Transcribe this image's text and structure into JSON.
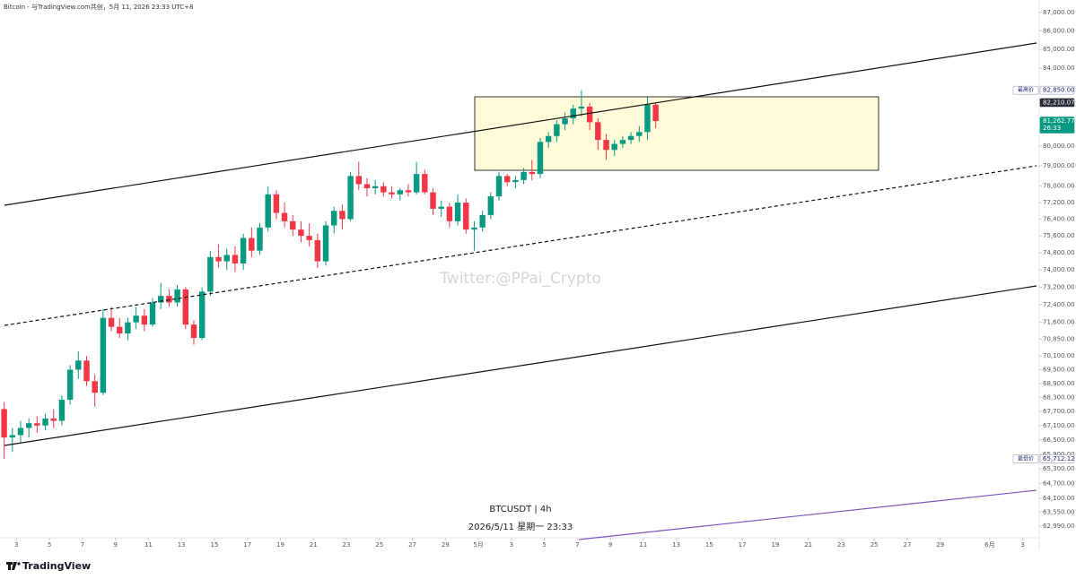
{
  "chart_data": {
    "type": "candlestick",
    "header": "Bitcoin - 与TradingView.com共创，5月 11, 2026 23:33 UTC+8",
    "title": "BTCUSDT | 4h",
    "subtitle": "2026/5/11 星期一 23:33",
    "watermark": "Twitter:@PPai_Crypto",
    "brand": "TradingView",
    "log_scale": true,
    "up_color": "#089981",
    "down_color": "#f23645",
    "x": [
      "2026-04-02 00:00",
      "2026-04-02 12:00",
      "2026-04-03 00:00",
      "2026-04-03 12:00",
      "2026-04-04 00:00",
      "2026-04-04 12:00",
      "2026-04-05 00:00",
      "2026-04-05 12:00",
      "2026-04-06 00:00",
      "2026-04-06 12:00",
      "2026-04-07 00:00",
      "2026-04-07 12:00",
      "2026-04-08 00:00",
      "2026-04-08 12:00",
      "2026-04-09 00:00",
      "2026-04-09 12:00",
      "2026-04-10 00:00",
      "2026-04-10 12:00",
      "2026-04-11 00:00",
      "2026-04-11 12:00",
      "2026-04-12 00:00",
      "2026-04-12 12:00",
      "2026-04-13 00:00",
      "2026-04-13 12:00",
      "2026-04-14 00:00",
      "2026-04-14 12:00",
      "2026-04-15 00:00",
      "2026-04-15 12:00",
      "2026-04-16 00:00",
      "2026-04-16 12:00",
      "2026-04-17 00:00",
      "2026-04-17 12:00",
      "2026-04-18 00:00",
      "2026-04-18 12:00",
      "2026-04-19 00:00",
      "2026-04-19 12:00",
      "2026-04-20 00:00",
      "2026-04-20 12:00",
      "2026-04-21 00:00",
      "2026-04-21 12:00",
      "2026-04-22 00:00",
      "2026-04-22 12:00",
      "2026-04-23 00:00",
      "2026-04-23 12:00",
      "2026-04-24 00:00",
      "2026-04-24 12:00",
      "2026-04-25 00:00",
      "2026-04-25 12:00",
      "2026-04-26 00:00",
      "2026-04-26 12:00",
      "2026-04-27 00:00",
      "2026-04-27 12:00",
      "2026-04-28 00:00",
      "2026-04-28 12:00",
      "2026-04-29 00:00",
      "2026-04-29 12:00",
      "2026-04-30 00:00",
      "2026-04-30 12:00",
      "2026-05-01 00:00",
      "2026-05-01 12:00",
      "2026-05-02 00:00",
      "2026-05-02 12:00",
      "2026-05-03 00:00",
      "2026-05-03 12:00",
      "2026-05-04 00:00",
      "2026-05-04 12:00",
      "2026-05-05 00:00",
      "2026-05-05 12:00",
      "2026-05-06 00:00",
      "2026-05-06 12:00",
      "2026-05-07 00:00",
      "2026-05-07 12:00",
      "2026-05-08 00:00",
      "2026-05-08 12:00",
      "2026-05-09 00:00",
      "2026-05-09 12:00",
      "2026-05-10 00:00",
      "2026-05-10 12:00",
      "2026-05-11 00:00",
      "2026-05-11 12:00"
    ],
    "open": [
      67800,
      66600,
      66700,
      67000,
      67200,
      67100,
      67400,
      67300,
      68200,
      69500,
      69900,
      69000,
      68500,
      71800,
      71400,
      71100,
      71600,
      71900,
      71500,
      72500,
      72800,
      72500,
      73100,
      71500,
      70900,
      73000,
      74600,
      74400,
      74700,
      74300,
      75500,
      74900,
      76000,
      77600,
      76700,
      76300,
      75900,
      75600,
      75400,
      74400,
      76100,
      76800,
      76400,
      78500,
      78100,
      77900,
      78000,
      77700,
      77600,
      77800,
      77700,
      78600,
      77700,
      76900,
      77000,
      76300,
      77200,
      75900,
      76000,
      76600,
      77500,
      78500,
      78200,
      78300,
      78700,
      78600,
      80200,
      80500,
      81100,
      81400,
      81900,
      82000,
      81200,
      80300,
      79800,
      80100,
      80300,
      80500,
      80700,
      82100
    ],
    "high": [
      68100,
      67000,
      67300,
      67400,
      67500,
      67600,
      67800,
      68400,
      69700,
      70300,
      70100,
      69300,
      72200,
      72300,
      71800,
      71800,
      72300,
      72200,
      72700,
      73400,
      73100,
      73300,
      73200,
      71700,
      73200,
      74900,
      75200,
      75000,
      75100,
      75700,
      76000,
      76200,
      78000,
      77800,
      77200,
      76600,
      76300,
      76200,
      75700,
      76300,
      77000,
      77100,
      78700,
      79200,
      78400,
      78300,
      78200,
      78000,
      77900,
      78100,
      79200,
      78800,
      77900,
      77300,
      77200,
      77600,
      77400,
      76300,
      76800,
      77700,
      78700,
      78600,
      78500,
      78900,
      79300,
      80400,
      80700,
      81300,
      81700,
      82100,
      82850,
      82200,
      81400,
      80600,
      80300,
      80500,
      80700,
      81000,
      82500,
      82210.07
    ],
    "low": [
      65712.12,
      66000,
      66400,
      66600,
      66800,
      66900,
      67000,
      67100,
      68000,
      69100,
      68800,
      67900,
      68400,
      71200,
      70900,
      70800,
      71300,
      71200,
      71400,
      72200,
      72300,
      72300,
      71300,
      70600,
      70800,
      72800,
      74100,
      74000,
      73900,
      74000,
      74600,
      74700,
      75800,
      76400,
      76000,
      75600,
      75300,
      75100,
      74100,
      74200,
      75700,
      75900,
      76300,
      77800,
      77500,
      77600,
      77500,
      77400,
      77300,
      77500,
      77600,
      77600,
      76600,
      76500,
      76000,
      76100,
      75700,
      74900,
      75800,
      76400,
      77300,
      78000,
      77900,
      78100,
      78300,
      78400,
      79900,
      80200,
      80800,
      81100,
      81500,
      80800,
      79800,
      79300,
      79500,
      79900,
      80100,
      80200,
      80300,
      80900
    ],
    "close": [
      66600,
      66700,
      67000,
      67200,
      67100,
      67400,
      67300,
      68200,
      69500,
      69900,
      69000,
      68500,
      71800,
      71400,
      71100,
      71600,
      71900,
      71500,
      72500,
      72800,
      72500,
      73100,
      71500,
      70900,
      73000,
      74600,
      74400,
      74700,
      74300,
      75500,
      74900,
      76000,
      77600,
      76700,
      76300,
      75900,
      75600,
      75400,
      74400,
      76100,
      76800,
      76400,
      78500,
      78100,
      77900,
      78000,
      77700,
      77600,
      77800,
      77700,
      78600,
      77700,
      76900,
      77000,
      76300,
      77200,
      75900,
      76000,
      76600,
      77500,
      78500,
      78200,
      78300,
      78700,
      78600,
      80200,
      80500,
      81100,
      81400,
      81900,
      82000,
      81200,
      80300,
      79800,
      80100,
      80300,
      80500,
      80700,
      82100,
      81262.77
    ],
    "xlim": [
      "2026-04-02 00:00",
      "2026-06-04 00:00"
    ],
    "xticks": [
      {
        "value": "2026-04-03",
        "label": "3"
      },
      {
        "value": "2026-04-05",
        "label": "5"
      },
      {
        "value": "2026-04-07",
        "label": "7"
      },
      {
        "value": "2026-04-09",
        "label": "9"
      },
      {
        "value": "2026-04-11",
        "label": "11"
      },
      {
        "value": "2026-04-13",
        "label": "13"
      },
      {
        "value": "2026-04-15",
        "label": "15"
      },
      {
        "value": "2026-04-17",
        "label": "17"
      },
      {
        "value": "2026-04-19",
        "label": "19"
      },
      {
        "value": "2026-04-21",
        "label": "21"
      },
      {
        "value": "2026-04-23",
        "label": "23"
      },
      {
        "value": "2026-04-25",
        "label": "25"
      },
      {
        "value": "2026-04-27",
        "label": "27"
      },
      {
        "value": "2026-04-29",
        "label": "29"
      },
      {
        "value": "2026-05-01",
        "label": "5月"
      },
      {
        "value": "2026-05-03",
        "label": "3"
      },
      {
        "value": "2026-05-05",
        "label": "5"
      },
      {
        "value": "2026-05-07",
        "label": "7"
      },
      {
        "value": "2026-05-09",
        "label": "9"
      },
      {
        "value": "2026-05-11",
        "label": "11"
      },
      {
        "value": "2026-05-13",
        "label": "13"
      },
      {
        "value": "2026-05-15",
        "label": "15"
      },
      {
        "value": "2026-05-17",
        "label": "17"
      },
      {
        "value": "2026-05-19",
        "label": "19"
      },
      {
        "value": "2026-05-21",
        "label": "21"
      },
      {
        "value": "2026-05-23",
        "label": "23"
      },
      {
        "value": "2026-05-25",
        "label": "25"
      },
      {
        "value": "2026-05-27",
        "label": "27"
      },
      {
        "value": "2026-05-29",
        "label": "29"
      },
      {
        "value": "2026-06-01",
        "label": "6月"
      },
      {
        "value": "2026-06-03",
        "label": "3"
      }
    ],
    "ylim": [
      62530,
      87440
    ],
    "yticks": [
      {
        "value": 87000,
        "label": "87,000.00"
      },
      {
        "value": 86000,
        "label": "86,000.00"
      },
      {
        "value": 85000,
        "label": "85,000.00"
      },
      {
        "value": 84000,
        "label": "84,000.00"
      },
      {
        "value": 80000,
        "label": "80,000.00"
      },
      {
        "value": 79000,
        "label": "79,000.00"
      },
      {
        "value": 78000,
        "label": "78,000.00"
      },
      {
        "value": 77200,
        "label": "77,200.00"
      },
      {
        "value": 76400,
        "label": "76,400.00"
      },
      {
        "value": 75600,
        "label": "75,600.00"
      },
      {
        "value": 74800,
        "label": "74,800.00"
      },
      {
        "value": 74000,
        "label": "74,000.00"
      },
      {
        "value": 73200,
        "label": "73,200.00"
      },
      {
        "value": 72400,
        "label": "72,400.00"
      },
      {
        "value": 71600,
        "label": "71,600.00"
      },
      {
        "value": 70850,
        "label": "70,850.00"
      },
      {
        "value": 70100,
        "label": "70,100.00"
      },
      {
        "value": 69500,
        "label": "69,500.00"
      },
      {
        "value": 68900,
        "label": "68,900.00"
      },
      {
        "value": 68300,
        "label": "68,300.00"
      },
      {
        "value": 67700,
        "label": "67,700.00"
      },
      {
        "value": 67100,
        "label": "67,100.00"
      },
      {
        "value": 66500,
        "label": "66,500.00"
      },
      {
        "value": 65900,
        "label": "65,900.00"
      },
      {
        "value": 65300,
        "label": "65,300.00"
      },
      {
        "value": 64700,
        "label": "64,700.00"
      },
      {
        "value": 64100,
        "label": "64,100.00"
      },
      {
        "value": 63550,
        "label": "63,550.00"
      },
      {
        "value": 62990,
        "label": "62,990.00"
      }
    ],
    "price_labels": [
      {
        "tag": "最高价",
        "price": {
          "value": 82850,
          "label": "82,850.00"
        },
        "style": "outline"
      },
      {
        "price": {
          "value": 82210.07,
          "label": "82,210.07"
        },
        "style": "dark"
      },
      {
        "price": {
          "value": 81262.77,
          "label": "81,262.77"
        },
        "sub": "26:33",
        "style": "last"
      },
      {
        "tag": "最低价",
        "price": {
          "value": 65712.12,
          "label": "65,712.12"
        },
        "style": "outline"
      }
    ]
  }
}
